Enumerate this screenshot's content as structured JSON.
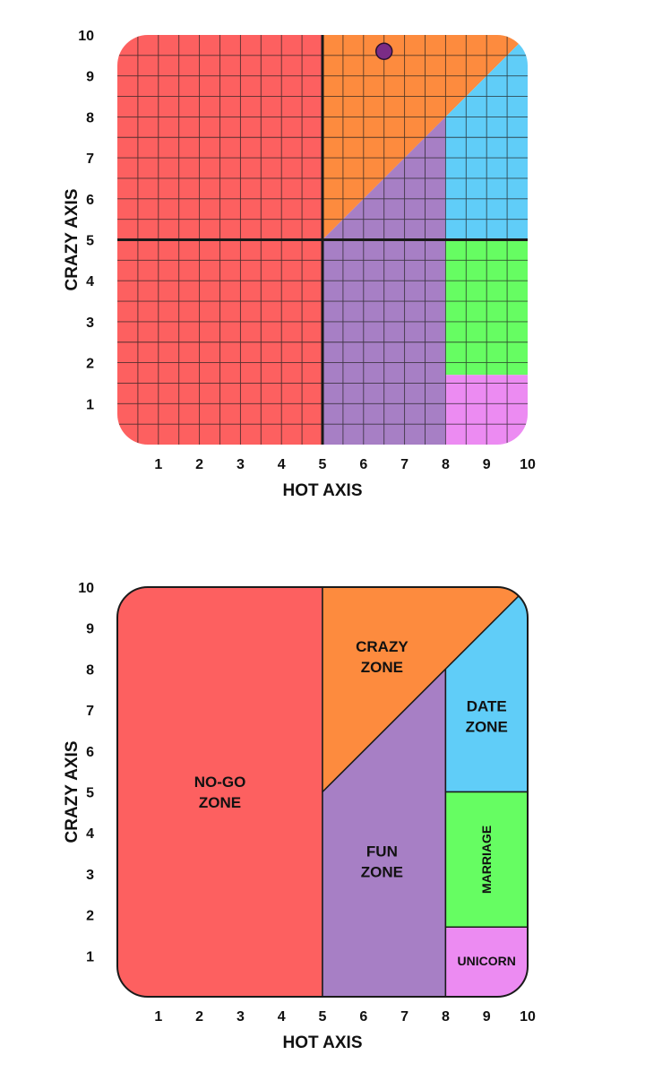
{
  "colors": {
    "nogo": "#fd6060",
    "crazy": "#fd8b3e",
    "fun": "#a77fc5",
    "date": "#60cdf8",
    "marriage": "#66fd62",
    "unicorn": "#ec8bf2",
    "point": "#7b2c86",
    "line": "#1a1a1a"
  },
  "chart_data": [
    {
      "type": "scatter",
      "xlabel": "HOT AXIS",
      "ylabel": "CRAZY AXIS",
      "xlim": [
        0,
        10
      ],
      "ylim": [
        0,
        10
      ],
      "x_ticks": [
        "1",
        "2",
        "3",
        "4",
        "5",
        "6",
        "7",
        "8",
        "9",
        "10"
      ],
      "y_ticks": [
        "1",
        "2",
        "3",
        "4",
        "5",
        "6",
        "7",
        "8",
        "9",
        "10"
      ],
      "grid": true,
      "points": [
        {
          "x": 6.5,
          "y": 9.6
        }
      ]
    },
    {
      "type": "diagram",
      "xlabel": "HOT AXIS",
      "ylabel": "CRAZY AXIS",
      "xlim": [
        0,
        10
      ],
      "ylim": [
        0,
        10
      ],
      "x_ticks": [
        "1",
        "2",
        "3",
        "4",
        "5",
        "6",
        "7",
        "8",
        "9",
        "10"
      ],
      "y_ticks": [
        "1",
        "2",
        "3",
        "4",
        "5",
        "6",
        "7",
        "8",
        "9",
        "10"
      ],
      "grid": false,
      "zones": [
        {
          "key": "nogo",
          "lines": [
            "NO-GO",
            "ZONE"
          ]
        },
        {
          "key": "crazy",
          "lines": [
            "CRAZY",
            "ZONE"
          ]
        },
        {
          "key": "fun",
          "lines": [
            "FUN",
            "ZONE"
          ]
        },
        {
          "key": "date",
          "lines": [
            "DATE",
            "ZONE"
          ]
        },
        {
          "key": "marriage",
          "lines": [
            "MARRIAGE"
          ]
        },
        {
          "key": "unicorn",
          "lines": [
            "UNICORN"
          ]
        }
      ]
    }
  ]
}
